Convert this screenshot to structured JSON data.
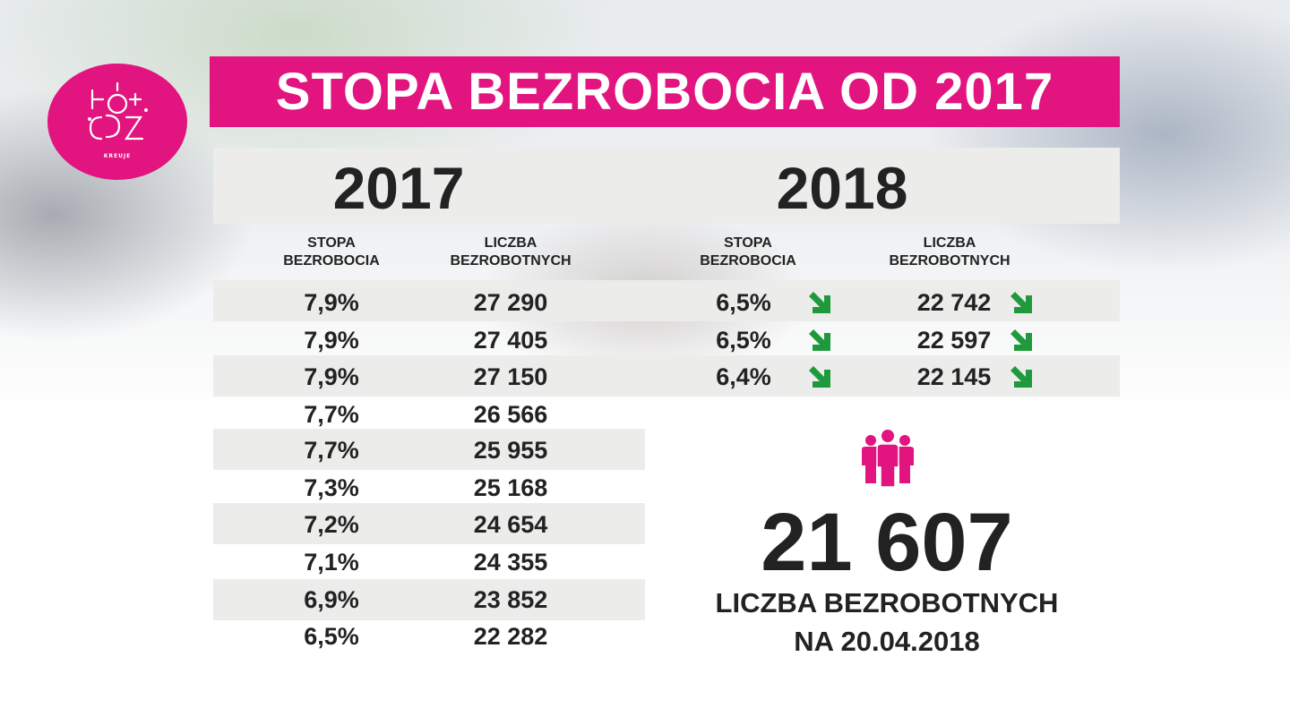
{
  "title": "STOPA BEZROBOCIA OD 2017",
  "logo": {
    "text": "KREUJE"
  },
  "years": {
    "y2017": "2017",
    "y2018": "2018"
  },
  "headers": {
    "rate_line1": "STOPA",
    "rate_line2": "BEZROBOCIA",
    "count_line1": "LICZBA",
    "count_line2": "BEZROBOTNYCH"
  },
  "table2017": [
    {
      "rate": "7,9%",
      "count": "27 290"
    },
    {
      "rate": "7,9%",
      "count": "27 405"
    },
    {
      "rate": "7,9%",
      "count": "27 150"
    },
    {
      "rate": "7,7%",
      "count": "26 566"
    },
    {
      "rate": "7,7%",
      "count": "25 955"
    },
    {
      "rate": "7,3%",
      "count": "25 168"
    },
    {
      "rate": "7,2%",
      "count": "24 654"
    },
    {
      "rate": "7,1%",
      "count": "24 355"
    },
    {
      "rate": "6,9%",
      "count": "23 852"
    },
    {
      "rate": "6,5%",
      "count": "22 282"
    }
  ],
  "table2018": [
    {
      "rate": "6,5%",
      "count": "22 742",
      "trend": "down"
    },
    {
      "rate": "6,5%",
      "count": "22 597",
      "trend": "down"
    },
    {
      "rate": "6,4%",
      "count": "22 145",
      "trend": "down"
    }
  ],
  "summary": {
    "icon": "people-group-icon",
    "number": "21 607",
    "label_line1": "LICZBA BEZROBOTNYCH",
    "label_line2": "NA 20.04.2018"
  },
  "colors": {
    "accent": "#e2147f",
    "arrow": "#1e9a3c",
    "stripe": "#ececeb",
    "text": "#222222"
  }
}
